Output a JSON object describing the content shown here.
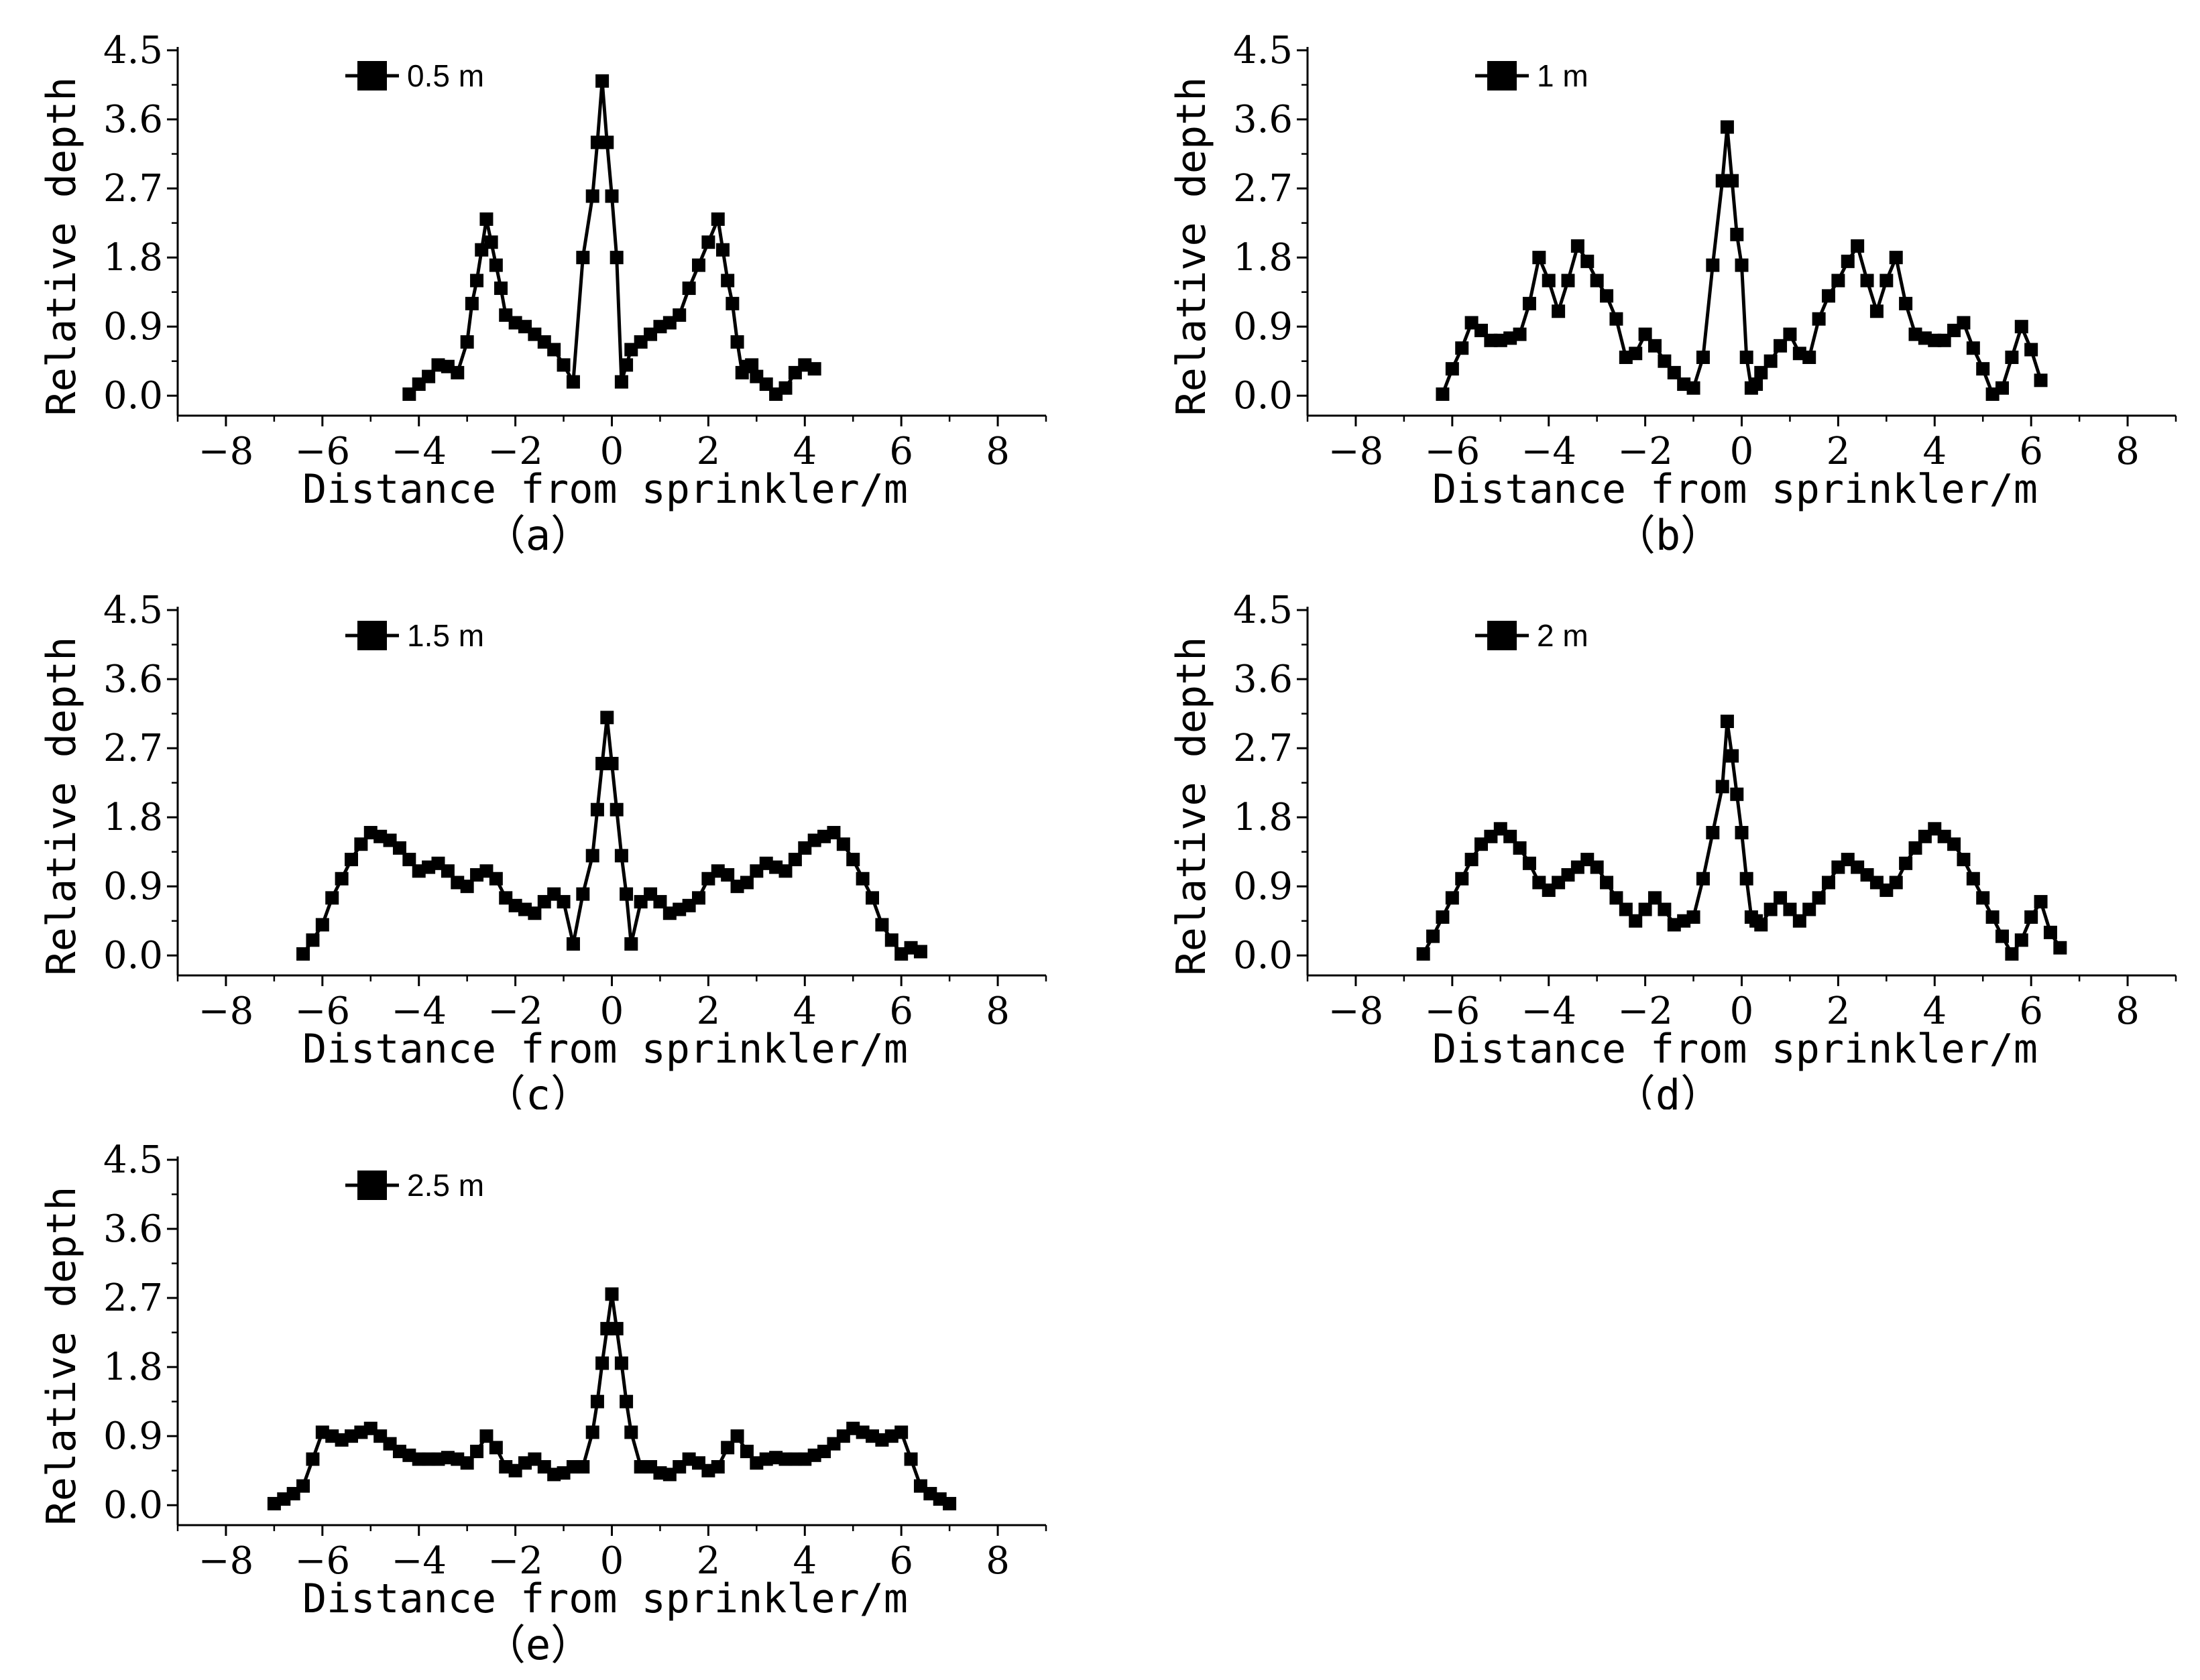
{
  "chart_data": [
    {
      "panel_label": "（a）",
      "type": "line",
      "xlabel": "Distance from sprinkler/m",
      "ylabel": "Relative depth",
      "xlim": [
        -9,
        9
      ],
      "ylim": [
        0,
        4.5
      ],
      "xticks": [
        "-8",
        "-6",
        "-4",
        "-2",
        "0",
        "2",
        "4",
        "6",
        "8"
      ],
      "yticks": [
        "0.0",
        "0.9",
        "1.8",
        "2.7",
        "3.6",
        "4.5"
      ],
      "legend_position": "top-left",
      "series": [
        {
          "name": "0.5 m",
          "x": [
            -4.2,
            -4.0,
            -3.8,
            -3.6,
            -3.4,
            -3.2,
            -3.0,
            -2.9,
            -2.8,
            -2.7,
            -2.6,
            -2.5,
            -2.4,
            -2.3,
            -2.2,
            -2.0,
            -1.8,
            -1.6,
            -1.4,
            -1.2,
            -1.0,
            -0.8,
            -0.6,
            -0.4,
            -0.3,
            -0.2,
            -0.1,
            0.0,
            0.1,
            0.2,
            0.3,
            0.4,
            0.6,
            0.8,
            1.0,
            1.2,
            1.4,
            1.6,
            1.8,
            2.0,
            2.2,
            2.3,
            2.4,
            2.5,
            2.6,
            2.7,
            2.8,
            2.9,
            3.0,
            3.2,
            3.4,
            3.6,
            3.8,
            4.0,
            4.2
          ],
          "y": [
            0.02,
            0.15,
            0.25,
            0.4,
            0.38,
            0.3,
            0.7,
            1.2,
            1.5,
            1.9,
            2.3,
            2.0,
            1.7,
            1.4,
            1.05,
            0.95,
            0.9,
            0.8,
            0.7,
            0.6,
            0.4,
            0.18,
            1.8,
            2.6,
            3.3,
            4.1,
            3.3,
            2.6,
            1.8,
            0.18,
            0.4,
            0.6,
            0.7,
            0.8,
            0.9,
            0.95,
            1.05,
            1.4,
            1.7,
            2.0,
            2.3,
            1.9,
            1.5,
            1.2,
            0.7,
            0.3,
            0.38,
            0.4,
            0.25,
            0.15,
            0.02,
            0.1,
            0.3,
            0.4,
            0.35
          ]
        }
      ]
    },
    {
      "panel_label": "（b）",
      "type": "line",
      "xlabel": "Distance from sprinkler/m",
      "ylabel": "Relative depth",
      "xlim": [
        -9,
        9
      ],
      "ylim": [
        0,
        4.5
      ],
      "xticks": [
        "-8",
        "-6",
        "-4",
        "-2",
        "0",
        "2",
        "4",
        "6",
        "8"
      ],
      "yticks": [
        "0.0",
        "0.9",
        "1.8",
        "2.7",
        "3.6",
        "4.5"
      ],
      "legend_position": "top-left",
      "series": [
        {
          "name": "1 m",
          "x": [
            -6.2,
            -6.0,
            -5.8,
            -5.6,
            -5.4,
            -5.2,
            -5.0,
            -4.8,
            -4.6,
            -4.4,
            -4.2,
            -4.0,
            -3.8,
            -3.6,
            -3.4,
            -3.2,
            -3.0,
            -2.8,
            -2.6,
            -2.4,
            -2.2,
            -2.0,
            -1.8,
            -1.6,
            -1.4,
            -1.2,
            -1.0,
            -0.8,
            -0.6,
            -0.4,
            -0.3,
            -0.2,
            -0.1,
            0.0,
            0.1,
            0.2,
            0.3,
            0.4,
            0.6,
            0.8,
            1.0,
            1.2,
            1.4,
            1.6,
            1.8,
            2.0,
            2.2,
            2.4,
            2.6,
            2.8,
            3.0,
            3.2,
            3.4,
            3.6,
            3.8,
            4.0,
            4.2,
            4.4,
            4.6,
            4.8,
            5.0,
            5.2,
            5.4,
            5.6,
            5.8,
            6.0,
            6.2
          ],
          "y": [
            0.02,
            0.35,
            0.62,
            0.95,
            0.85,
            0.72,
            0.72,
            0.75,
            0.8,
            1.2,
            1.8,
            1.5,
            1.1,
            1.5,
            1.95,
            1.75,
            1.5,
            1.3,
            1.0,
            0.5,
            0.55,
            0.8,
            0.65,
            0.45,
            0.3,
            0.15,
            0.1,
            0.5,
            1.7,
            2.8,
            3.5,
            2.8,
            2.1,
            1.7,
            0.5,
            0.1,
            0.15,
            0.3,
            0.45,
            0.65,
            0.8,
            0.55,
            0.5,
            1.0,
            1.3,
            1.5,
            1.75,
            1.95,
            1.5,
            1.1,
            1.5,
            1.8,
            1.2,
            0.8,
            0.75,
            0.72,
            0.72,
            0.85,
            0.95,
            0.62,
            0.35,
            0.02,
            0.1,
            0.5,
            0.9,
            0.6,
            0.2
          ]
        }
      ]
    },
    {
      "panel_label": "（c）",
      "type": "line",
      "xlabel": "Distance from sprinkler/m",
      "ylabel": "Relative depth",
      "xlim": [
        -9,
        9
      ],
      "ylim": [
        0,
        4.5
      ],
      "xticks": [
        "-8",
        "-6",
        "-4",
        "-2",
        "0",
        "2",
        "4",
        "6",
        "8"
      ],
      "yticks": [
        "0.0",
        "0.9",
        "1.8",
        "2.7",
        "3.6",
        "4.5"
      ],
      "legend_position": "top-left",
      "series": [
        {
          "name": "1.5 m",
          "x": [
            -6.4,
            -6.2,
            -6.0,
            -5.8,
            -5.6,
            -5.4,
            -5.2,
            -5.0,
            -4.8,
            -4.6,
            -4.4,
            -4.2,
            -4.0,
            -3.8,
            -3.6,
            -3.4,
            -3.2,
            -3.0,
            -2.8,
            -2.6,
            -2.4,
            -2.2,
            -2.0,
            -1.8,
            -1.6,
            -1.4,
            -1.2,
            -1.0,
            -0.8,
            -0.6,
            -0.4,
            -0.3,
            -0.2,
            -0.1,
            0.0,
            0.1,
            0.2,
            0.3,
            0.4,
            0.6,
            0.8,
            1.0,
            1.2,
            1.4,
            1.6,
            1.8,
            2.0,
            2.2,
            2.4,
            2.6,
            2.8,
            3.0,
            3.2,
            3.4,
            3.6,
            3.8,
            4.0,
            4.2,
            4.4,
            4.6,
            4.8,
            5.0,
            5.2,
            5.4,
            5.6,
            5.8,
            6.0,
            6.2,
            6.4
          ],
          "y": [
            0.02,
            0.2,
            0.4,
            0.75,
            1.0,
            1.25,
            1.45,
            1.6,
            1.55,
            1.5,
            1.4,
            1.25,
            1.1,
            1.15,
            1.2,
            1.1,
            0.95,
            0.9,
            1.05,
            1.1,
            1.0,
            0.75,
            0.65,
            0.6,
            0.55,
            0.7,
            0.8,
            0.7,
            0.15,
            0.8,
            1.3,
            1.9,
            2.5,
            3.1,
            2.5,
            1.9,
            1.3,
            0.8,
            0.15,
            0.7,
            0.8,
            0.7,
            0.55,
            0.6,
            0.65,
            0.75,
            1.0,
            1.1,
            1.05,
            0.9,
            0.95,
            1.1,
            1.2,
            1.15,
            1.1,
            1.25,
            1.4,
            1.5,
            1.55,
            1.6,
            1.45,
            1.25,
            1.0,
            0.75,
            0.4,
            0.2,
            0.02,
            0.1,
            0.05
          ]
        }
      ]
    },
    {
      "panel_label": "（d）",
      "type": "line",
      "xlabel": "Distance from sprinkler/m",
      "ylabel": "Relative depth",
      "xlim": [
        -9,
        9
      ],
      "ylim": [
        0,
        4.5
      ],
      "xticks": [
        "-8",
        "-6",
        "-4",
        "-2",
        "0",
        "2",
        "4",
        "6",
        "8"
      ],
      "yticks": [
        "0.0",
        "0.9",
        "1.8",
        "2.7",
        "3.6",
        "4.5"
      ],
      "legend_position": "top-left",
      "series": [
        {
          "name": "2 m",
          "x": [
            -6.6,
            -6.4,
            -6.2,
            -6.0,
            -5.8,
            -5.6,
            -5.4,
            -5.2,
            -5.0,
            -4.8,
            -4.6,
            -4.4,
            -4.2,
            -4.0,
            -3.8,
            -3.6,
            -3.4,
            -3.2,
            -3.0,
            -2.8,
            -2.6,
            -2.4,
            -2.2,
            -2.0,
            -1.8,
            -1.6,
            -1.4,
            -1.2,
            -1.0,
            -0.8,
            -0.6,
            -0.4,
            -0.3,
            -0.2,
            -0.1,
            0.0,
            0.1,
            0.2,
            0.3,
            0.4,
            0.6,
            0.8,
            1.0,
            1.2,
            1.4,
            1.6,
            1.8,
            2.0,
            2.2,
            2.4,
            2.6,
            2.8,
            3.0,
            3.2,
            3.4,
            3.6,
            3.8,
            4.0,
            4.2,
            4.4,
            4.6,
            4.8,
            5.0,
            5.2,
            5.4,
            5.6,
            5.8,
            6.0,
            6.2,
            6.4,
            6.6
          ],
          "y": [
            0.02,
            0.25,
            0.5,
            0.75,
            1.0,
            1.25,
            1.45,
            1.55,
            1.65,
            1.55,
            1.4,
            1.2,
            0.95,
            0.85,
            0.95,
            1.05,
            1.15,
            1.25,
            1.15,
            0.95,
            0.75,
            0.6,
            0.45,
            0.6,
            0.75,
            0.6,
            0.4,
            0.45,
            0.5,
            1.0,
            1.6,
            2.2,
            3.05,
            2.6,
            2.1,
            1.6,
            1.0,
            0.5,
            0.45,
            0.4,
            0.6,
            0.75,
            0.6,
            0.45,
            0.6,
            0.75,
            0.95,
            1.15,
            1.25,
            1.15,
            1.05,
            0.95,
            0.85,
            0.95,
            1.2,
            1.4,
            1.55,
            1.65,
            1.55,
            1.45,
            1.25,
            1.0,
            0.75,
            0.5,
            0.25,
            0.02,
            0.2,
            0.5,
            0.7,
            0.3,
            0.1
          ]
        }
      ]
    },
    {
      "panel_label": "（e）",
      "type": "line",
      "xlabel": "Distance from sprinkler/m",
      "ylabel": "Relative depth",
      "xlim": [
        -9,
        9
      ],
      "ylim": [
        0,
        4.5
      ],
      "xticks": [
        "-8",
        "-6",
        "-4",
        "-2",
        "0",
        "2",
        "4",
        "6",
        "8"
      ],
      "yticks": [
        "0.0",
        "0.9",
        "1.8",
        "2.7",
        "3.6",
        "4.5"
      ],
      "legend_position": "top-left",
      "series": [
        {
          "name": "2.5 m",
          "x": [
            -7.0,
            -6.8,
            -6.6,
            -6.4,
            -6.2,
            -6.0,
            -5.8,
            -5.6,
            -5.4,
            -5.2,
            -5.0,
            -4.8,
            -4.6,
            -4.4,
            -4.2,
            -4.0,
            -3.8,
            -3.6,
            -3.4,
            -3.2,
            -3.0,
            -2.8,
            -2.6,
            -2.4,
            -2.2,
            -2.0,
            -1.8,
            -1.6,
            -1.4,
            -1.2,
            -1.0,
            -0.8,
            -0.6,
            -0.4,
            -0.3,
            -0.2,
            -0.1,
            0.0,
            0.1,
            0.2,
            0.3,
            0.4,
            0.6,
            0.8,
            1.0,
            1.2,
            1.4,
            1.6,
            1.8,
            2.0,
            2.2,
            2.4,
            2.6,
            2.8,
            3.0,
            3.2,
            3.4,
            3.6,
            3.8,
            4.0,
            4.2,
            4.4,
            4.6,
            4.8,
            5.0,
            5.2,
            5.4,
            5.6,
            5.8,
            6.0,
            6.2,
            6.4,
            6.6,
            6.8,
            7.0
          ],
          "y": [
            0.02,
            0.08,
            0.15,
            0.25,
            0.6,
            0.95,
            0.9,
            0.85,
            0.9,
            0.95,
            1.0,
            0.9,
            0.8,
            0.7,
            0.65,
            0.6,
            0.6,
            0.6,
            0.62,
            0.6,
            0.55,
            0.7,
            0.9,
            0.75,
            0.5,
            0.45,
            0.55,
            0.6,
            0.5,
            0.4,
            0.42,
            0.5,
            0.5,
            0.95,
            1.35,
            1.85,
            2.3,
            2.75,
            2.3,
            1.85,
            1.35,
            0.95,
            0.5,
            0.5,
            0.42,
            0.4,
            0.5,
            0.6,
            0.55,
            0.45,
            0.5,
            0.75,
            0.9,
            0.7,
            0.55,
            0.6,
            0.62,
            0.6,
            0.6,
            0.6,
            0.65,
            0.7,
            0.8,
            0.9,
            1.0,
            0.95,
            0.9,
            0.85,
            0.9,
            0.95,
            0.6,
            0.25,
            0.15,
            0.08,
            0.02
          ]
        }
      ]
    }
  ]
}
